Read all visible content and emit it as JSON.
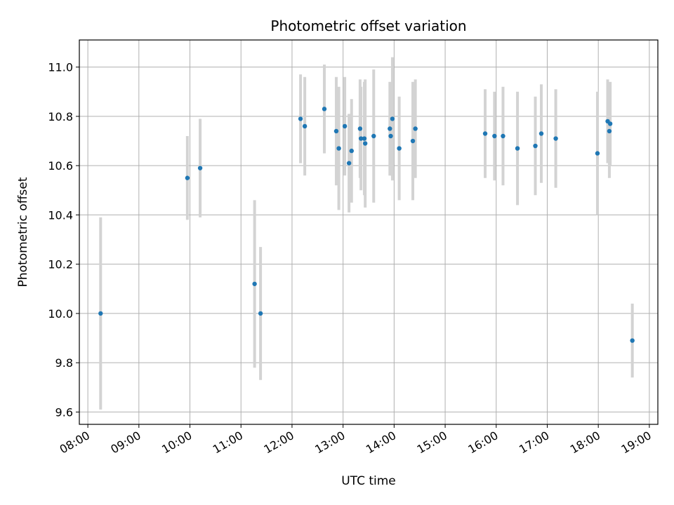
{
  "chart_data": {
    "type": "scatter",
    "title": "Photometric offset variation",
    "xlabel": "UTC time",
    "ylabel": "Photometric offset",
    "xlim": [
      "07:50",
      "19:10"
    ],
    "ylim": [
      9.55,
      11.11
    ],
    "grid": true,
    "x_ticks": [
      "08:00",
      "09:00",
      "10:00",
      "11:00",
      "12:00",
      "13:00",
      "14:00",
      "15:00",
      "16:00",
      "17:00",
      "18:00",
      "19:00"
    ],
    "y_ticks": [
      "9.6",
      "9.8",
      "10.0",
      "10.2",
      "10.4",
      "10.6",
      "10.8",
      "11.0"
    ],
    "point_color": "#1f77b4",
    "errorbar_color": "#d3d3d3",
    "points": [
      {
        "x": "08:15",
        "y": 10.0,
        "yerr": 0.39
      },
      {
        "x": "09:57",
        "y": 10.55,
        "yerr": 0.17
      },
      {
        "x": "10:12",
        "y": 10.59,
        "yerr": 0.2
      },
      {
        "x": "11:16",
        "y": 10.12,
        "yerr": 0.34
      },
      {
        "x": "11:23",
        "y": 10.0,
        "yerr": 0.27
      },
      {
        "x": "12:10",
        "y": 10.79,
        "yerr": 0.18
      },
      {
        "x": "12:15",
        "y": 10.76,
        "yerr": 0.2
      },
      {
        "x": "12:38",
        "y": 10.83,
        "yerr": 0.18
      },
      {
        "x": "12:52",
        "y": 10.74,
        "yerr": 0.22
      },
      {
        "x": "12:55",
        "y": 10.67,
        "yerr": 0.25
      },
      {
        "x": "13:02",
        "y": 10.76,
        "yerr": 0.2
      },
      {
        "x": "13:07",
        "y": 10.61,
        "yerr": 0.2
      },
      {
        "x": "13:10",
        "y": 10.66,
        "yerr": 0.21
      },
      {
        "x": "13:20",
        "y": 10.75,
        "yerr": 0.2
      },
      {
        "x": "13:21",
        "y": 10.71,
        "yerr": 0.21
      },
      {
        "x": "13:25",
        "y": 10.71,
        "yerr": 0.23
      },
      {
        "x": "13:26",
        "y": 10.69,
        "yerr": 0.26
      },
      {
        "x": "13:36",
        "y": 10.72,
        "yerr": 0.27
      },
      {
        "x": "13:55",
        "y": 10.75,
        "yerr": 0.19
      },
      {
        "x": "13:56",
        "y": 10.72,
        "yerr": 0.16
      },
      {
        "x": "13:58",
        "y": 10.79,
        "yerr": 0.25
      },
      {
        "x": "14:06",
        "y": 10.67,
        "yerr": 0.21
      },
      {
        "x": "14:22",
        "y": 10.7,
        "yerr": 0.24
      },
      {
        "x": "14:25",
        "y": 10.75,
        "yerr": 0.2
      },
      {
        "x": "15:47",
        "y": 10.73,
        "yerr": 0.18
      },
      {
        "x": "15:58",
        "y": 10.72,
        "yerr": 0.18
      },
      {
        "x": "16:08",
        "y": 10.72,
        "yerr": 0.2
      },
      {
        "x": "16:25",
        "y": 10.67,
        "yerr": 0.23
      },
      {
        "x": "16:46",
        "y": 10.68,
        "yerr": 0.2
      },
      {
        "x": "16:53",
        "y": 10.73,
        "yerr": 0.2
      },
      {
        "x": "17:10",
        "y": 10.71,
        "yerr": 0.2
      },
      {
        "x": "17:59",
        "y": 10.65,
        "yerr": 0.25
      },
      {
        "x": "18:11",
        "y": 10.78,
        "yerr": 0.17
      },
      {
        "x": "18:13",
        "y": 10.74,
        "yerr": 0.19
      },
      {
        "x": "18:14",
        "y": 10.77,
        "yerr": 0.17
      },
      {
        "x": "18:40",
        "y": 9.89,
        "yerr": 0.15
      }
    ]
  }
}
